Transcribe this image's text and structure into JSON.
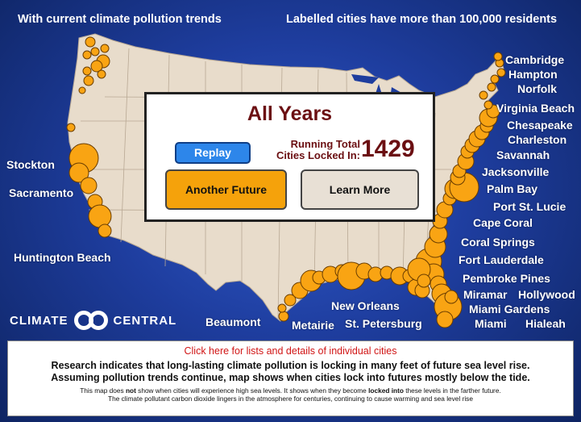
{
  "header": {
    "left": "With current climate pollution trends",
    "right": "Labelled cities have more than 100,000 residents"
  },
  "colors": {
    "ocean": "#1e3d9e",
    "land": "#e8dccb",
    "marker": "#f9a413",
    "accent_red": "#6b0f12"
  },
  "panel": {
    "title": "All Years",
    "replay_label": "Replay",
    "total_label_line1": "Running Total",
    "total_label_line2": "Cities Locked In:",
    "total_value": "1429",
    "another_future_label": "Another Future",
    "learn_more_label": "Learn More"
  },
  "city_labels": [
    "Cambridge",
    "Hampton",
    "Norfolk",
    "Virginia Beach",
    "Chesapeake",
    "Charleston",
    "Savannah",
    "Jacksonville",
    "Palm Bay",
    "Port St. Lucie",
    "Cape Coral",
    "Coral Springs",
    "Fort Lauderdale",
    "Pembroke Pines",
    "Miramar",
    "Hollywood",
    "Miami Gardens",
    "Miami",
    "Hialeah",
    "Stockton",
    "Sacramento",
    "Huntington Beach",
    "Beaumont",
    "Metairie",
    "New Orleans",
    "St. Petersburg"
  ],
  "logo": {
    "left": "CLIMATE",
    "right": "CENTRAL",
    "icon": "infinity-logo-icon"
  },
  "info": {
    "link": "Click here for lists and details of individual cities",
    "main_line1": "Research indicates that long-lasting climate pollution is locking in many feet of future sea level rise.",
    "main_line2": "Assuming pollution trends continue, map shows when cities lock into futures mostly below the tide.",
    "small_line1_a": "This map does ",
    "small_line1_b": "not",
    "small_line1_c": " show when cities will experience high sea levels. It shows when they become ",
    "small_line1_d": "locked into",
    "small_line1_e": " these levels in the farther future.",
    "small_line2": "The climate pollutant carbon dioxide lingers in the atmosphere for centuries, continuing to cause warming and sea level rise"
  }
}
